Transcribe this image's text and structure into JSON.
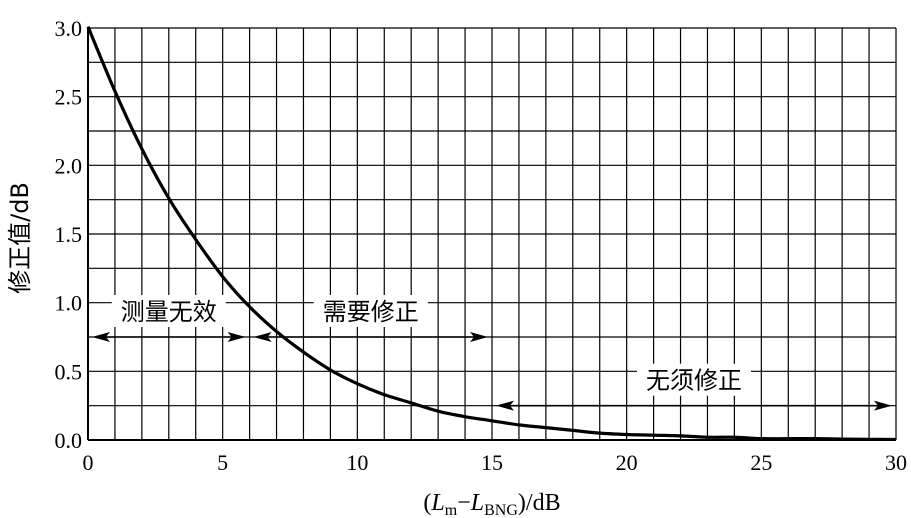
{
  "chart_data": {
    "type": "line",
    "xlabel_parts": {
      "open": "(",
      "L1": "L",
      "sub1": "m",
      "minus": "−",
      "L2": "L",
      "sub2": "BNG",
      "close": ")/dB"
    },
    "ylabel": "修正值/dB",
    "xlim": [
      0,
      30
    ],
    "ylim": [
      0,
      3.0
    ],
    "xticks": [
      0,
      5,
      10,
      15,
      20,
      25,
      30
    ],
    "xtick_labels": [
      "0",
      "5",
      "10",
      "15",
      "20",
      "25",
      "30"
    ],
    "yticks": [
      0.0,
      0.5,
      1.0,
      1.5,
      2.0,
      2.5,
      3.0
    ],
    "ytick_labels": [
      "0.0",
      "0.5",
      "1.0",
      "1.5",
      "2.0",
      "2.5",
      "3.0"
    ],
    "grid": true,
    "grid_step_x": 1,
    "grid_step_y": 0.25,
    "series": [
      {
        "x": [
          0,
          1,
          2,
          3,
          4,
          5,
          6,
          7,
          8,
          9,
          10,
          11,
          12,
          13,
          14,
          15,
          16,
          17,
          18,
          19,
          20,
          21,
          22,
          23,
          24,
          25,
          26,
          27,
          28,
          29,
          30
        ],
        "y": [
          3.01,
          2.54,
          2.12,
          1.76,
          1.46,
          1.19,
          0.97,
          0.79,
          0.64,
          0.51,
          0.41,
          0.33,
          0.27,
          0.21,
          0.17,
          0.14,
          0.11,
          0.09,
          0.07,
          0.05,
          0.04,
          0.035,
          0.03,
          0.02,
          0.02,
          0.01,
          0.01,
          0.01,
          0.007,
          0.005,
          0.004
        ]
      }
    ],
    "annotations": [
      {
        "text": "测量无效",
        "x_from": 0,
        "x_to": 6,
        "y": 0.75
      },
      {
        "text": "需要修正",
        "x_from": 6,
        "x_to": 15,
        "y": 0.75
      },
      {
        "text": "无须修正",
        "x_from": 15,
        "x_to": 30,
        "y": 0.25
      }
    ]
  }
}
